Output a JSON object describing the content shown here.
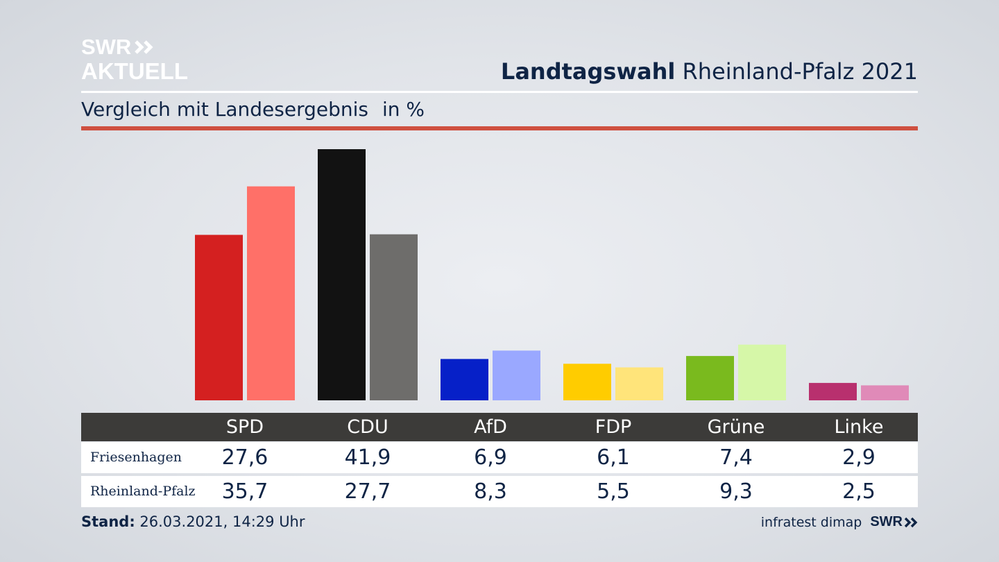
{
  "brand": {
    "logo_line1": "SWR",
    "logo_line2": "AKTUELL",
    "footer_logo": "SWR",
    "color_text": "#0f2445",
    "color_red_rule": "#cf5040"
  },
  "header": {
    "title_bold": "Landtagswahl",
    "title_rest": "Rheinland-Pfalz 2021",
    "subtitle": "Vergleich mit Landesergebnis",
    "unit": "in %"
  },
  "table": {
    "rows": [
      {
        "label": "Friesenhagen",
        "values": [
          "27,6",
          "41,9",
          "6,9",
          "6,1",
          "7,4",
          "2,9"
        ]
      },
      {
        "label": "Rheinland-Pfalz",
        "values": [
          "35,7",
          "27,7",
          "8,3",
          "5,5",
          "9,3",
          "2,5"
        ]
      }
    ]
  },
  "chart_data": {
    "type": "bar",
    "categories": [
      "SPD",
      "CDU",
      "AfD",
      "FDP",
      "Grüne",
      "Linke"
    ],
    "series": [
      {
        "name": "Friesenhagen",
        "values": [
          27.6,
          41.9,
          6.9,
          6.1,
          7.4,
          2.9
        ],
        "colors": [
          "#d42020",
          "#121212",
          "#0620c8",
          "#ffcc00",
          "#7aba1e",
          "#b8306e"
        ]
      },
      {
        "name": "Rheinland-Pfalz",
        "values": [
          35.7,
          27.7,
          8.3,
          5.5,
          9.3,
          2.5
        ],
        "colors": [
          "#ff7068",
          "#6e6d6b",
          "#9aa8ff",
          "#ffe47a",
          "#d6f7a8",
          "#e08ab8"
        ]
      }
    ],
    "ylim": [
      0,
      42
    ],
    "grid": false
  },
  "footer": {
    "stand_label": "Stand:",
    "stand_value": "26.03.2021, 14:29 Uhr",
    "source": "infratest dimap"
  }
}
